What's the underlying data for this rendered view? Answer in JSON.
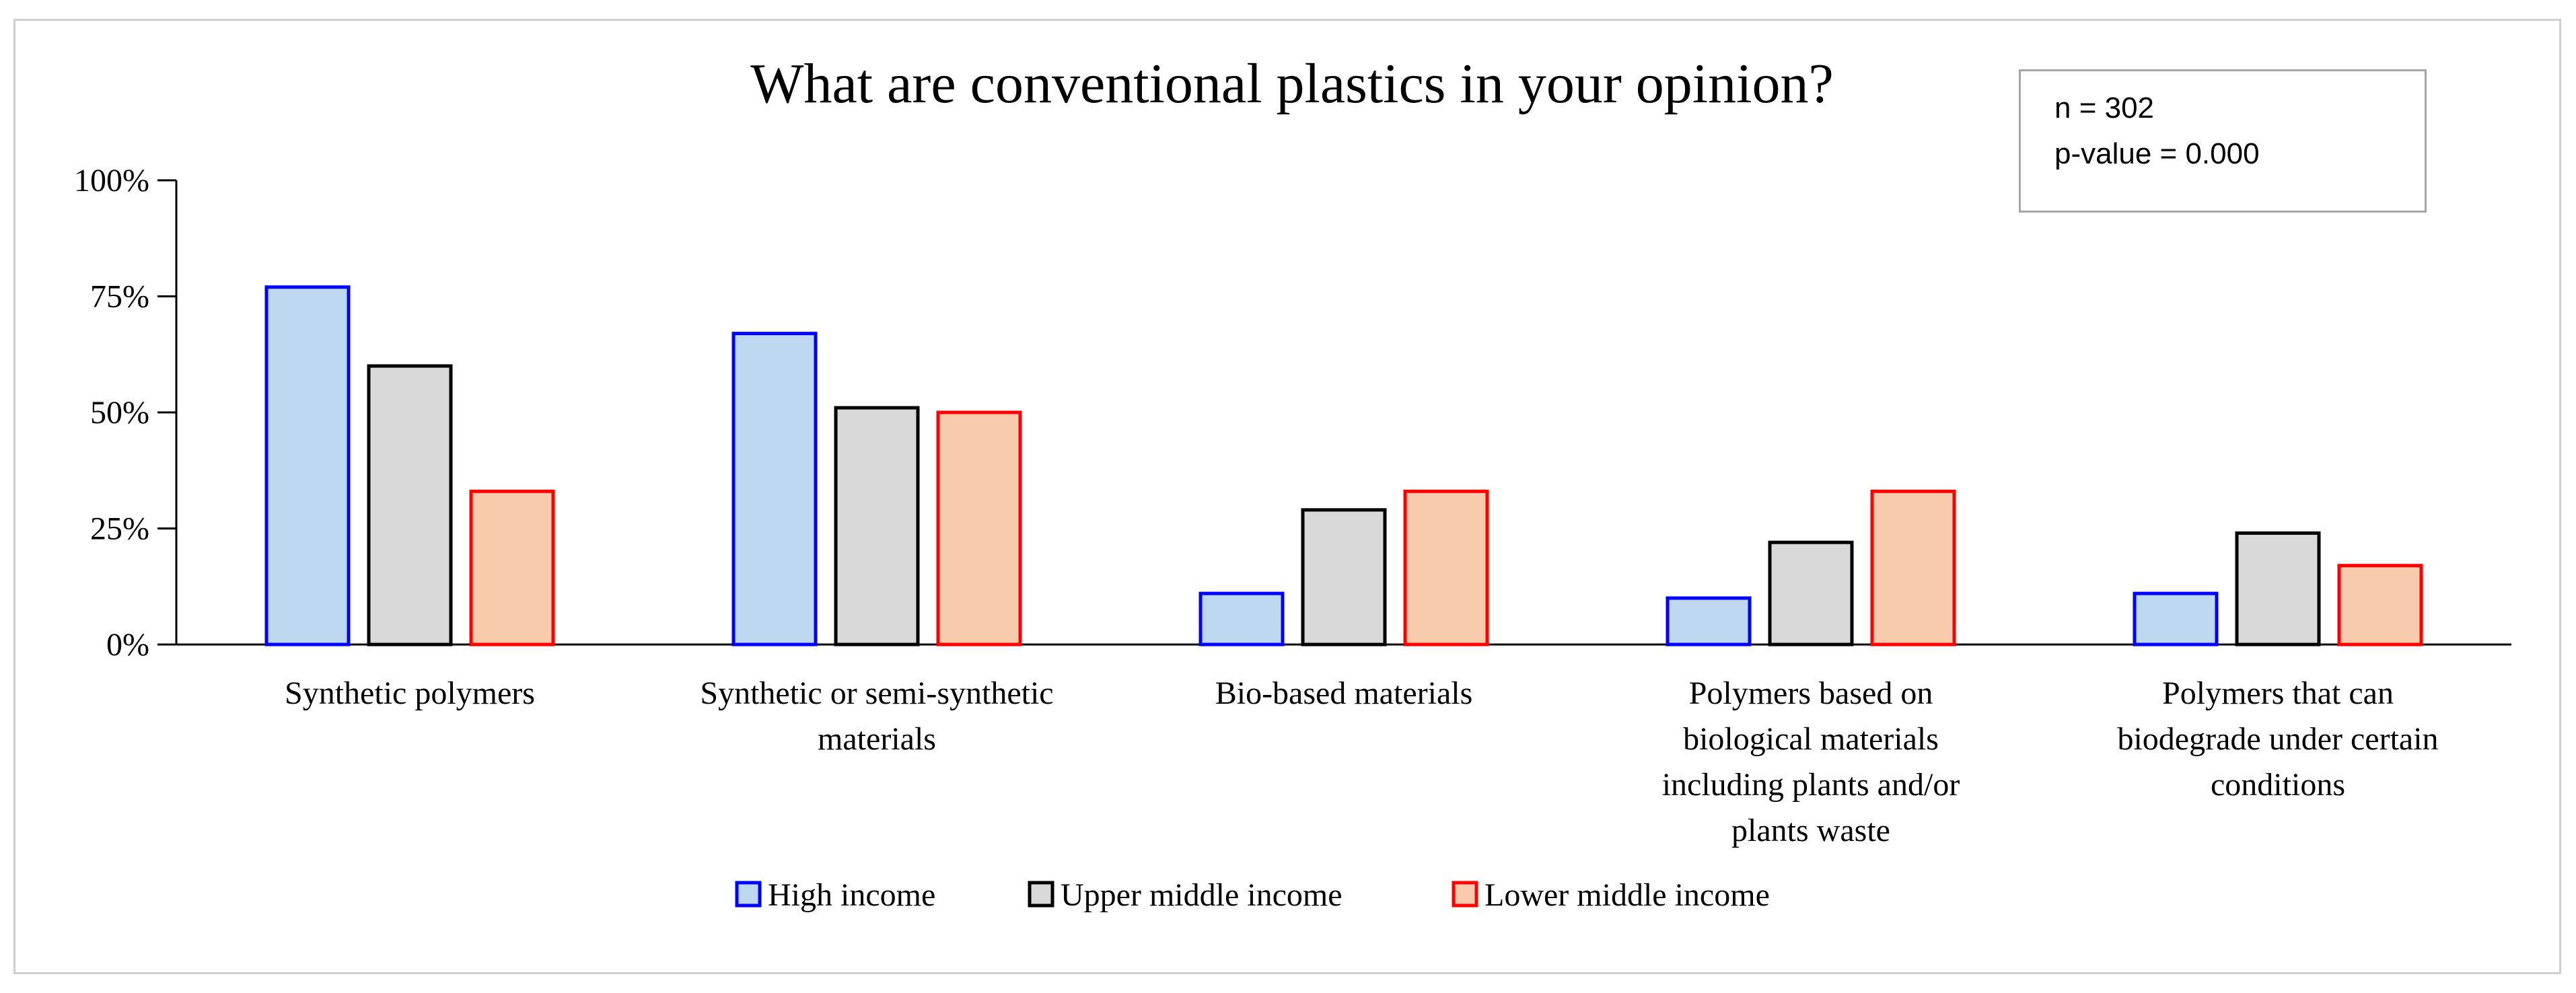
{
  "chart_data": {
    "type": "bar",
    "title": "What are conventional plastics in your opinion?",
    "xlabel": "",
    "ylabel": "",
    "ylim": [
      0,
      100
    ],
    "y_ticks": [
      {
        "value": 0,
        "label": "0%"
      },
      {
        "value": 25,
        "label": "25%"
      },
      {
        "value": 50,
        "label": "50%"
      },
      {
        "value": 75,
        "label": "75%"
      },
      {
        "value": 100,
        "label": "100%"
      }
    ],
    "categories": [
      [
        "Synthetic polymers"
      ],
      [
        "Synthetic or semi-synthetic",
        "materials"
      ],
      [
        "Bio-based materials"
      ],
      [
        "Polymers based on",
        "biological materials",
        "including plants and/or",
        "plants waste"
      ],
      [
        "Polymers that can",
        "biodegrade under certain",
        "conditions"
      ]
    ],
    "series": [
      {
        "name": "High income",
        "fill": "#bdd7ee",
        "stroke": "#0000ff",
        "values": [
          77,
          67,
          11,
          10,
          11
        ]
      },
      {
        "name": "Upper middle income",
        "fill": "#d9d9d9",
        "stroke": "#000000",
        "values": [
          60,
          51,
          29,
          22,
          24
        ]
      },
      {
        "name": "Lower middle income",
        "fill": "#f8cbad",
        "stroke": "#ff0000",
        "values": [
          33,
          50,
          33,
          33,
          17
        ]
      }
    ],
    "legend_position": "bottom",
    "grid": false
  },
  "stats_box": {
    "n_label": "n = 302",
    "p_label": "p-value = 0.000"
  }
}
